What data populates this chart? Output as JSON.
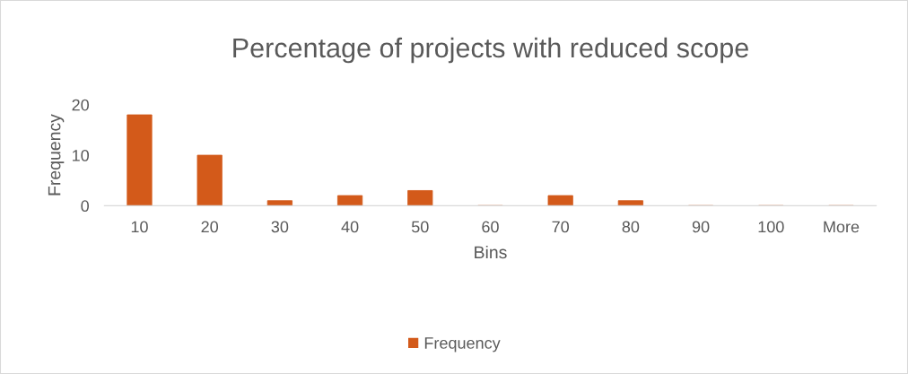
{
  "chart_data": {
    "type": "bar",
    "title": "Percentage of projects with reduced scope",
    "xlabel": "Bins",
    "ylabel": "Frequency",
    "categories": [
      "10",
      "20",
      "30",
      "40",
      "50",
      "60",
      "70",
      "80",
      "90",
      "100",
      "More"
    ],
    "series": [
      {
        "name": "Frequency",
        "color": "#d35a1a",
        "values": [
          18,
          10,
          1,
          2,
          3,
          0,
          2,
          1,
          0,
          0,
          0
        ]
      }
    ],
    "ylim": [
      0,
      20
    ],
    "yticks": [
      0,
      10,
      20
    ],
    "grid": false,
    "legend": "bottom"
  }
}
